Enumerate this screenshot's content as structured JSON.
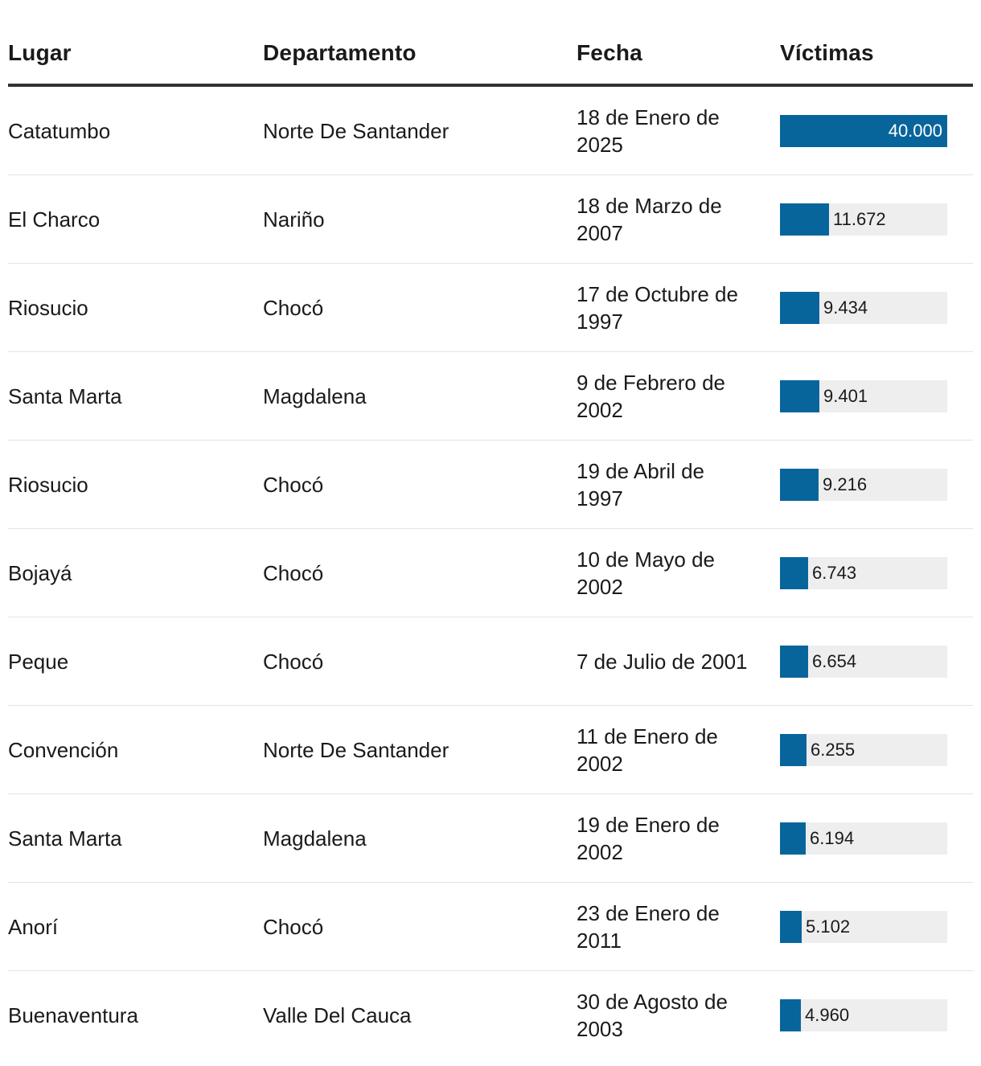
{
  "header": {
    "lugar": "Lugar",
    "departamento": "Departamento",
    "fecha": "Fecha",
    "victimas": "Víctimas"
  },
  "colors": {
    "bar": "#08659c",
    "track": "#eeeeee",
    "rule": "#333333"
  },
  "chart_data": {
    "type": "table",
    "columns": [
      "Lugar",
      "Departamento",
      "Fecha",
      "Víctimas"
    ],
    "max_value": 40000,
    "rows": [
      {
        "lugar": "Catatumbo",
        "departamento": "Norte De Santander",
        "fecha": "18 de Enero de 2025",
        "victimas": 40000,
        "victimas_label": "40.000"
      },
      {
        "lugar": "El Charco",
        "departamento": "Nariño",
        "fecha": "18 de Marzo de 2007",
        "victimas": 11672,
        "victimas_label": "11.672"
      },
      {
        "lugar": "Riosucio",
        "departamento": "Chocó",
        "fecha": "17 de Octubre de 1997",
        "victimas": 9434,
        "victimas_label": "9.434"
      },
      {
        "lugar": "Santa Marta",
        "departamento": "Magdalena",
        "fecha": "9 de Febrero de 2002",
        "victimas": 9401,
        "victimas_label": "9.401"
      },
      {
        "lugar": "Riosucio",
        "departamento": "Chocó",
        "fecha": "19 de Abril de 1997",
        "victimas": 9216,
        "victimas_label": "9.216"
      },
      {
        "lugar": "Bojayá",
        "departamento": "Chocó",
        "fecha": "10 de Mayo de 2002",
        "victimas": 6743,
        "victimas_label": "6.743"
      },
      {
        "lugar": "Peque",
        "departamento": "Chocó",
        "fecha": "7 de Julio de 2001",
        "victimas": 6654,
        "victimas_label": "6.654"
      },
      {
        "lugar": "Convención",
        "departamento": "Norte De Santander",
        "fecha": "11 de Enero de 2002",
        "victimas": 6255,
        "victimas_label": "6.255"
      },
      {
        "lugar": "Santa Marta",
        "departamento": "Magdalena",
        "fecha": "19 de Enero de 2002",
        "victimas": 6194,
        "victimas_label": "6.194"
      },
      {
        "lugar": "Anorí",
        "departamento": "Chocó",
        "fecha": "23 de Enero de 2011",
        "victimas": 5102,
        "victimas_label": "5.102"
      },
      {
        "lugar": "Buenaventura",
        "departamento": "Valle Del Cauca",
        "fecha": "30 de Agosto de 2003",
        "victimas": 4960,
        "victimas_label": "4.960"
      }
    ]
  }
}
